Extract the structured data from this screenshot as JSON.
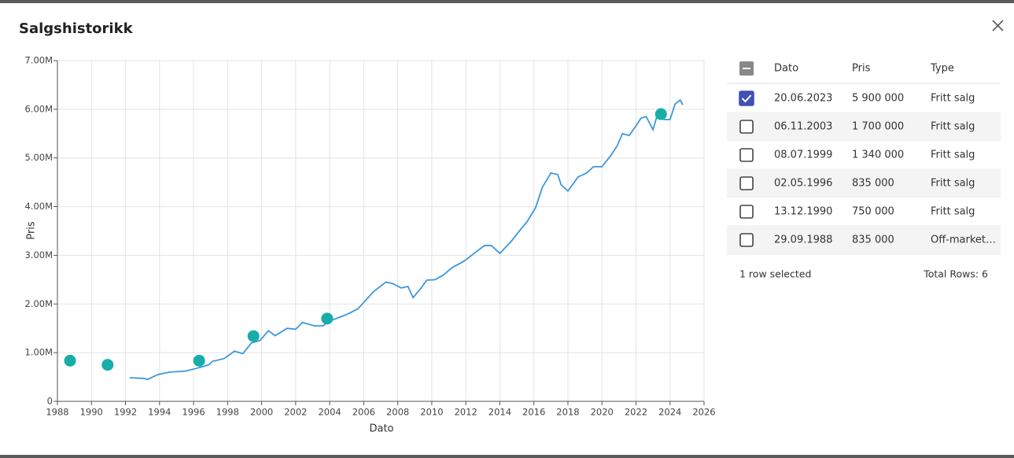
{
  "title": "Salgshistorikk",
  "chart_data": {
    "type": "line",
    "x_label": "Dato",
    "y_label": "Pris",
    "xlim": [
      1988,
      2026
    ],
    "ylim": [
      0,
      7000000
    ],
    "xticks": [
      1988,
      1990,
      1992,
      1994,
      1996,
      1998,
      2000,
      2002,
      2004,
      2006,
      2008,
      2010,
      2012,
      2014,
      2016,
      2018,
      2020,
      2022,
      2024,
      2026
    ],
    "yticks": [
      0,
      {
        "value": 1000000,
        "label": "1.00M"
      },
      {
        "value": 2000000,
        "label": "2.00M"
      },
      {
        "value": 3000000,
        "label": "3.00M"
      },
      {
        "value": 4000000,
        "label": "4.00M"
      },
      {
        "value": 5000000,
        "label": "5.00M"
      },
      {
        "value": 6000000,
        "label": "6.00M"
      },
      {
        "value": 7000000,
        "label": "7.00M"
      }
    ],
    "grid": true,
    "series": [
      {
        "type": "line",
        "color": "#3d97dd",
        "x": [
          1992.25,
          1993.1,
          1993.3,
          1993.9,
          1994.6,
          1995.5,
          1996.2,
          1996.9,
          1997.1,
          1997.8,
          1998.4,
          1998.9,
          1999.4,
          1999.9,
          2000.4,
          2000.8,
          2001.5,
          2002.0,
          2002.4,
          2003.1,
          2003.6,
          2004.0,
          2004.97,
          2005.66,
          2006.1,
          2006.6,
          2007.3,
          2007.7,
          2008.2,
          2008.6,
          2008.9,
          2009.4,
          2009.7,
          2010.2,
          2010.7,
          2011.2,
          2011.9,
          2012.6,
          2013.1,
          2013.5,
          2014.0,
          2014.7,
          2015.1,
          2015.6,
          2016.1,
          2016.5,
          2017.0,
          2017.4,
          2017.6,
          2018.0,
          2018.6,
          2019.1,
          2019.5,
          2020.0,
          2020.5,
          2020.9,
          2021.2,
          2021.6,
          2022.0,
          2022.3,
          2022.6,
          2023.0,
          2023.2,
          2023.7,
          2024.0,
          2024.3,
          2024.6,
          2024.75
        ],
        "values": [
          485000,
          470000,
          450000,
          550000,
          600000,
          620000,
          680000,
          750000,
          820000,
          880000,
          1030000,
          980000,
          1200000,
          1250000,
          1450000,
          1350000,
          1500000,
          1480000,
          1620000,
          1550000,
          1550000,
          1650000,
          1780000,
          1900000,
          2070000,
          2260000,
          2450000,
          2420000,
          2330000,
          2360000,
          2130000,
          2340000,
          2490000,
          2500000,
          2600000,
          2750000,
          2880000,
          3070000,
          3200000,
          3200000,
          3040000,
          3300000,
          3480000,
          3690000,
          3980000,
          4400000,
          4690000,
          4660000,
          4450000,
          4320000,
          4610000,
          4690000,
          4820000,
          4820000,
          5040000,
          5250000,
          5500000,
          5460000,
          5660000,
          5820000,
          5850000,
          5580000,
          5820000,
          5790000,
          5790000,
          6110000,
          6190000,
          6090000
        ]
      },
      {
        "type": "scatter",
        "color": "#17ada9",
        "x": [
          2023.47,
          2003.85,
          1999.52,
          1996.33,
          1990.95,
          1988.74
        ],
        "values": [
          5900000,
          1700000,
          1340000,
          835000,
          750000,
          835000
        ]
      }
    ]
  },
  "table": {
    "columns": [
      "Dato",
      "Pris",
      "Type"
    ],
    "rows": [
      [
        "20.06.2023",
        "5 900 000",
        "Fritt salg"
      ],
      [
        "06.11.2003",
        "1 700 000",
        "Fritt salg"
      ],
      [
        "08.07.1999",
        "1 340 000",
        "Fritt salg"
      ],
      [
        "02.05.1996",
        "835 000",
        "Fritt salg"
      ],
      [
        "13.12.1990",
        "750 000",
        "Fritt salg"
      ],
      [
        "29.09.1988",
        "835 000",
        "Off-market…"
      ]
    ],
    "selected": [
      true,
      false,
      false,
      false,
      false,
      false
    ]
  },
  "footer": {
    "selected": "1 row selected",
    "total": "Total Rows: 6"
  }
}
